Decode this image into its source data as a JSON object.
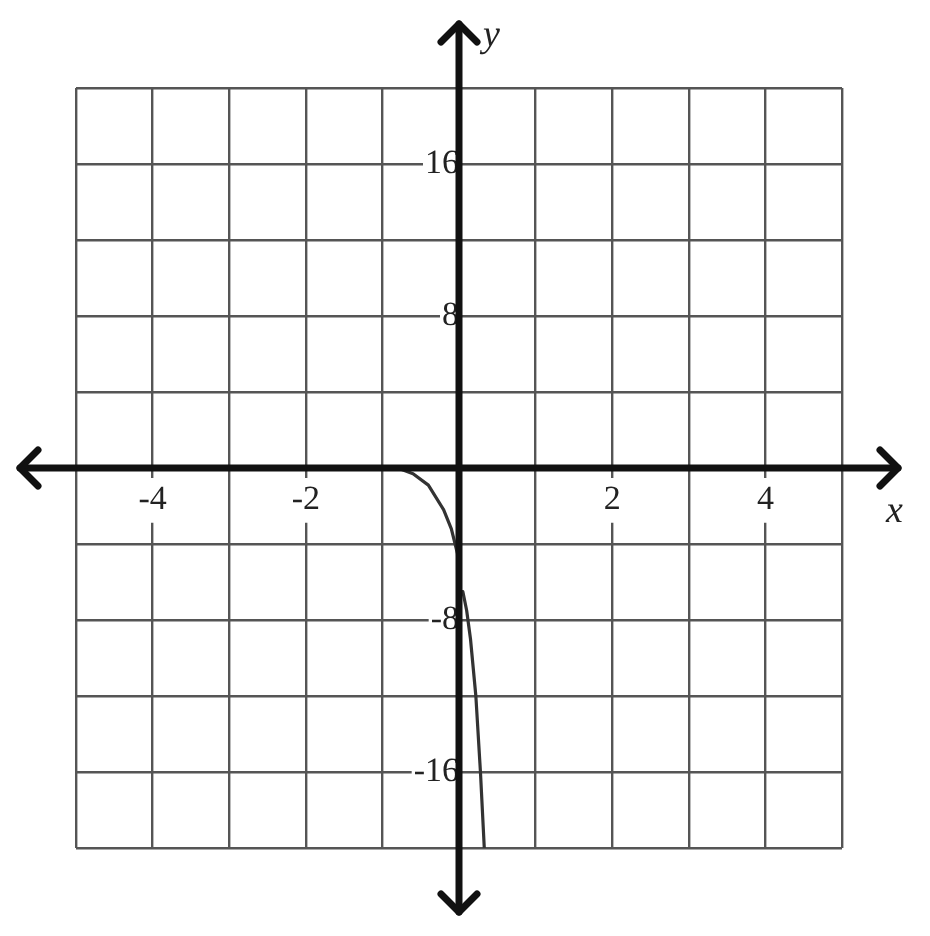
{
  "chart_data": {
    "type": "line",
    "xlabel": "x",
    "ylabel": "y",
    "series": [
      {
        "color": "#333333",
        "x": [
          -0.8,
          -0.6,
          -0.4,
          -0.2,
          -0.1,
          -0.02,
          0,
          0.05,
          0.1,
          0.15,
          0.22,
          0.28,
          0.33
        ],
        "values": [
          0,
          -0.3,
          -0.9,
          -2.2,
          -3.2,
          -4.5,
          -6.5,
          -6.5,
          -7.5,
          -9,
          -12,
          -16,
          -20
        ]
      }
    ],
    "xlim": [
      -5,
      5
    ],
    "xticks": [
      {
        "value": -5,
        "label": null
      },
      -4,
      {
        "value": -3,
        "label": null
      },
      -2,
      {
        "value": -1,
        "label": null
      },
      {
        "value": 0,
        "label": null
      },
      {
        "value": 1,
        "label": null
      },
      2,
      {
        "value": 3,
        "label": null
      },
      4,
      {
        "value": 5,
        "label": null
      }
    ],
    "ylim": [
      -20,
      20
    ],
    "yticks": [
      {
        "value": -20,
        "label": null
      },
      -16,
      {
        "value": -12,
        "label": null
      },
      -8,
      {
        "value": -4,
        "label": null
      },
      {
        "value": 0,
        "label": null
      },
      {
        "value": 4,
        "label": null
      },
      8,
      {
        "value": 12,
        "label": null
      },
      16,
      {
        "value": 20,
        "label": null
      }
    ],
    "grid": true,
    "legend": false,
    "marker": "none",
    "line_style": "solid"
  }
}
